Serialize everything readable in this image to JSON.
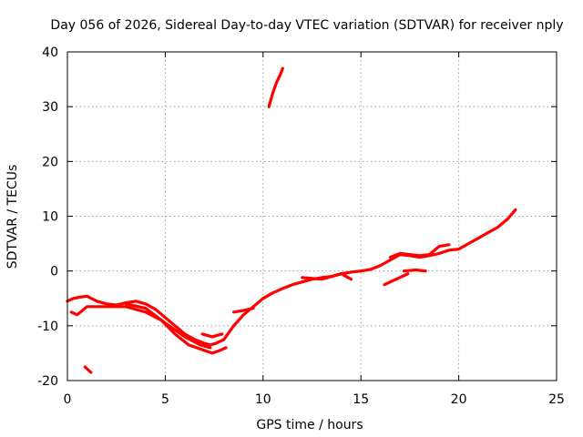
{
  "chart_data": {
    "type": "scatter",
    "title": "Day 056 of 2026, Sidereal Day-to-day VTEC variation (SDTVAR) for receiver nply",
    "xlabel": "GPS time / hours",
    "ylabel": "SDTVAR / TECUs",
    "xlim": [
      0,
      25
    ],
    "ylim": [
      -20,
      40
    ],
    "xticks": [
      0,
      5,
      10,
      15,
      20,
      25
    ],
    "yticks": [
      -20,
      -10,
      0,
      10,
      20,
      30,
      40
    ],
    "grid": true,
    "color": "#ff0000",
    "series": [
      {
        "name": "trace-main",
        "x": [
          0.0,
          0.3,
          0.6,
          1.0,
          1.5,
          2.0,
          2.5,
          3.0,
          3.5,
          4.0,
          4.5,
          5.0,
          5.5,
          6.0,
          6.5,
          7.0,
          7.3,
          7.6,
          8.0,
          8.5,
          9.0,
          9.5,
          10.0,
          10.5,
          11.0,
          11.5,
          12.0,
          12.5,
          13.0,
          13.5,
          14.0,
          14.5,
          15.0,
          15.5,
          16.0,
          16.5,
          17.0,
          17.5,
          18.0,
          18.5,
          19.0,
          19.5,
          20.0,
          20.5,
          21.0,
          21.5,
          22.0,
          22.5,
          22.9
        ],
        "y": [
          -5.5,
          -5.0,
          -4.8,
          -4.6,
          -5.5,
          -6.0,
          -6.2,
          -5.8,
          -5.5,
          -6.0,
          -7.0,
          -8.5,
          -10.0,
          -11.5,
          -12.5,
          -13.2,
          -13.5,
          -13.2,
          -12.5,
          -10.0,
          -8.0,
          -6.5,
          -5.0,
          -4.0,
          -3.2,
          -2.5,
          -2.0,
          -1.5,
          -1.2,
          -1.0,
          -0.5,
          -0.2,
          0.0,
          0.3,
          1.0,
          2.0,
          3.0,
          2.8,
          2.5,
          2.8,
          3.2,
          3.8,
          4.0,
          5.0,
          6.0,
          7.0,
          8.0,
          9.5,
          11.2
        ]
      },
      {
        "name": "trace-dip",
        "x": [
          0.2,
          0.5,
          1.0,
          2.0,
          3.0,
          4.0,
          4.8,
          5.5,
          6.2,
          7.0,
          7.4,
          7.8,
          8.1
        ],
        "y": [
          -7.5,
          -8.0,
          -6.5,
          -6.5,
          -6.5,
          -7.5,
          -9.0,
          -11.5,
          -13.5,
          -14.5,
          -15.0,
          -14.5,
          -14.0
        ],
        "seg": [
          0,
          0,
          0,
          0,
          0,
          0,
          0,
          0,
          0,
          0,
          0,
          0,
          0
        ]
      },
      {
        "name": "trace-low",
        "x": [
          3.0,
          4.0,
          5.0,
          6.0,
          6.8,
          7.3
        ],
        "y": [
          -6.0,
          -6.8,
          -9.5,
          -12.0,
          -13.5,
          -14.0
        ]
      },
      {
        "name": "trace-segment-a",
        "x": [
          6.9,
          7.4,
          7.9
        ],
        "y": [
          -11.5,
          -12.0,
          -11.5
        ]
      },
      {
        "name": "trace-segment-b",
        "x": [
          8.5,
          9.0,
          9.5
        ],
        "y": [
          -7.5,
          -7.2,
          -6.8
        ]
      },
      {
        "name": "trace-burst",
        "x": [
          10.3,
          10.5,
          10.7,
          10.9,
          11.0
        ],
        "y": [
          30.0,
          32.5,
          34.5,
          36.0,
          37.0
        ]
      },
      {
        "name": "trace-isolated",
        "x": [
          0.9,
          1.2
        ],
        "y": [
          -17.5,
          -18.5
        ]
      },
      {
        "name": "trace-late-a",
        "x": [
          16.2,
          16.8,
          17.4
        ],
        "y": [
          -2.5,
          -1.5,
          -0.5
        ]
      },
      {
        "name": "trace-late-b",
        "x": [
          17.2,
          17.8,
          18.3
        ],
        "y": [
          0.0,
          0.2,
          0.0
        ]
      },
      {
        "name": "trace-mid",
        "x": [
          12.0,
          13.0,
          14.0,
          14.5
        ],
        "y": [
          -1.2,
          -1.5,
          -0.5,
          -1.5
        ]
      },
      {
        "name": "trace-upper",
        "x": [
          16.5,
          17.0,
          17.5,
          18.0,
          18.5,
          19.0,
          19.5
        ],
        "y": [
          2.5,
          3.2,
          3.0,
          2.8,
          3.0,
          4.5,
          4.8
        ]
      }
    ]
  }
}
